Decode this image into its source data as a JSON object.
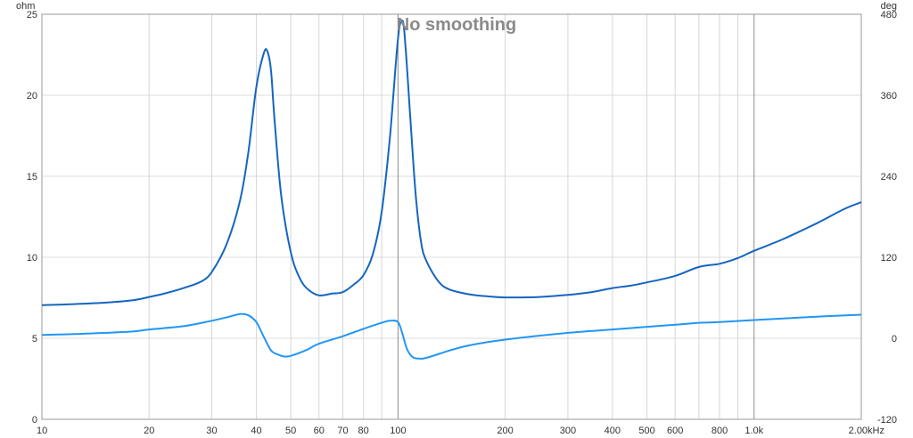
{
  "chart_data": {
    "type": "line",
    "title": "No smoothing",
    "x_scale": "log",
    "xlim": [
      10,
      2000
    ],
    "x_ticks": [
      {
        "v": 10,
        "label": "10"
      },
      {
        "v": 20,
        "label": "20"
      },
      {
        "v": 30,
        "label": "30"
      },
      {
        "v": 40,
        "label": "40"
      },
      {
        "v": 50,
        "label": "50"
      },
      {
        "v": 60,
        "label": "60"
      },
      {
        "v": 70,
        "label": "70"
      },
      {
        "v": 80,
        "label": "80"
      },
      {
        "v": 100,
        "label": "100"
      },
      {
        "v": 200,
        "label": "200"
      },
      {
        "v": 300,
        "label": "300"
      },
      {
        "v": 400,
        "label": "400"
      },
      {
        "v": 500,
        "label": "500"
      },
      {
        "v": 600,
        "label": "600"
      },
      {
        "v": 800,
        "label": "800"
      },
      {
        "v": 1000,
        "label": "1.0k"
      },
      {
        "v": 2000,
        "label": "2.00kHz"
      }
    ],
    "x_grid": [
      10,
      20,
      30,
      40,
      50,
      60,
      70,
      80,
      90,
      100,
      200,
      300,
      400,
      500,
      600,
      700,
      800,
      900,
      1000,
      2000
    ],
    "x_major": [
      100,
      1000
    ],
    "y_left": {
      "unit": "ohm",
      "lim": [
        0,
        25
      ],
      "ticks": [
        0,
        5,
        10,
        15,
        20,
        25
      ]
    },
    "y_right": {
      "unit": "deg",
      "lim": [
        -120,
        480
      ],
      "ticks": [
        -120,
        0,
        120,
        240,
        360,
        480
      ]
    },
    "grid": true,
    "series": [
      {
        "axis": "left",
        "color": "#1565c0",
        "x": [
          10,
          12,
          15,
          18,
          20,
          22,
          25,
          28,
          30,
          33,
          36,
          38,
          40,
          42,
          43,
          44,
          45,
          47,
          50,
          53,
          56,
          60,
          65,
          70,
          75,
          80,
          85,
          90,
          95,
          100,
          103,
          105,
          108,
          112,
          116,
          120,
          130,
          140,
          160,
          180,
          200,
          250,
          300,
          350,
          400,
          450,
          500,
          600,
          700,
          800,
          900,
          1000,
          1200,
          1500,
          1800,
          2000
        ],
        "y": [
          7.05,
          7.1,
          7.2,
          7.35,
          7.55,
          7.75,
          8.1,
          8.5,
          9.1,
          10.8,
          13.5,
          16.5,
          20.5,
          22.6,
          22.7,
          21.5,
          18.5,
          13.8,
          10.3,
          8.7,
          8.0,
          7.65,
          7.75,
          7.85,
          8.3,
          8.9,
          10.2,
          12.8,
          17.5,
          23.5,
          24.6,
          23.0,
          19.0,
          14.0,
          11.0,
          9.8,
          8.5,
          8.0,
          7.7,
          7.58,
          7.52,
          7.55,
          7.68,
          7.85,
          8.1,
          8.25,
          8.45,
          8.85,
          9.4,
          9.6,
          9.95,
          10.4,
          11.1,
          12.1,
          13.0,
          13.4
        ]
      },
      {
        "axis": "right",
        "color": "#2196f3",
        "x": [
          10,
          12,
          15,
          18,
          20,
          25,
          30,
          33,
          36,
          38,
          40,
          42,
          44,
          46,
          48,
          50,
          55,
          60,
          70,
          80,
          90,
          95,
          100,
          103,
          106,
          110,
          115,
          120,
          140,
          160,
          200,
          300,
          400,
          500,
          600,
          700,
          800,
          1000,
          1500,
          2000
        ],
        "y": [
          5,
          6,
          8,
          10,
          13,
          18,
          26,
          31,
          36,
          34,
          24,
          2,
          -18,
          -24,
          -27,
          -26,
          -18,
          -8,
          3,
          14,
          23,
          26,
          24,
          6,
          -16,
          -28,
          -30,
          -29,
          -18,
          -10,
          -2,
          8,
          13,
          17,
          20,
          23,
          24,
          27,
          32,
          35
        ]
      }
    ]
  }
}
